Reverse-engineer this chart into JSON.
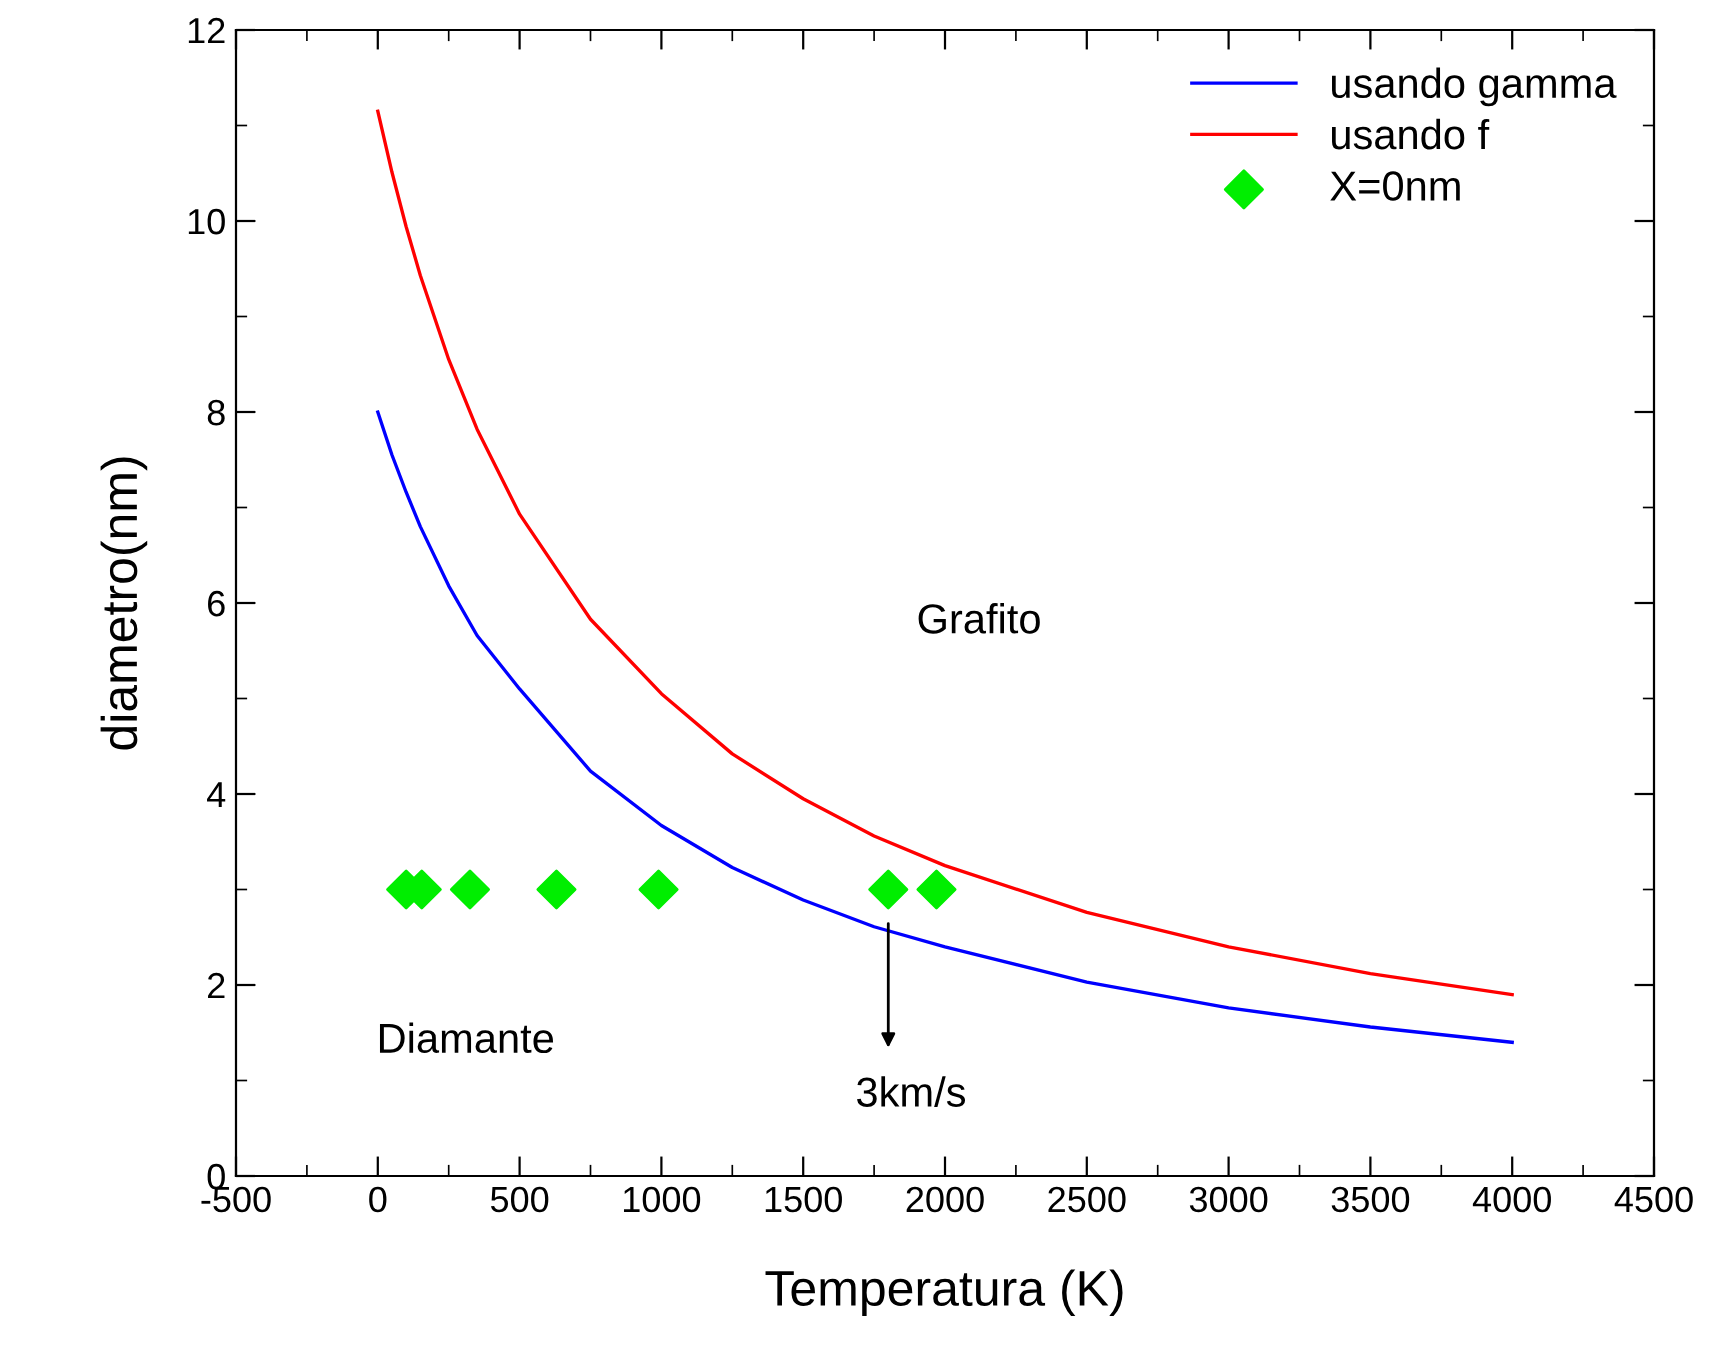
{
  "chart_data": {
    "type": "line",
    "xlabel": "Temperatura (K)",
    "ylabel": "diametro(nm)",
    "xlim": [
      -500,
      4500
    ],
    "xticks": [
      -500,
      0,
      500,
      1000,
      1500,
      2000,
      2500,
      3000,
      3500,
      4000,
      4500
    ],
    "ylim": [
      0,
      12
    ],
    "yticks": [
      0,
      2,
      4,
      6,
      8,
      10,
      12
    ],
    "grid": false,
    "legend": "top right",
    "series": [
      {
        "name": "usando gamma",
        "color": "#0000ff",
        "marker": "none",
        "x": [
          0,
          50,
          100,
          150,
          250,
          350,
          500,
          750,
          1000,
          1250,
          1500,
          1750,
          2000,
          2500,
          3000,
          3500,
          4000
        ],
        "values": [
          8.0,
          7.55,
          7.16,
          6.8,
          6.18,
          5.66,
          5.1,
          4.24,
          3.67,
          3.23,
          2.89,
          2.61,
          2.4,
          2.03,
          1.76,
          1.56,
          1.4
        ]
      },
      {
        "name": "usando f",
        "color": "#ff0000",
        "marker": "none",
        "x": [
          0,
          50,
          100,
          150,
          250,
          350,
          500,
          750,
          1000,
          1250,
          1500,
          1750,
          2000,
          2500,
          3000,
          3500,
          4000
        ],
        "values": [
          11.15,
          10.51,
          9.94,
          9.43,
          8.55,
          7.82,
          6.93,
          5.83,
          5.05,
          4.42,
          3.95,
          3.56,
          3.25,
          2.76,
          2.4,
          2.12,
          1.9
        ]
      },
      {
        "name": "X=0nm",
        "type": "scatter",
        "color": "#00ee00",
        "marker": "diamond",
        "x": [
          100,
          155,
          325,
          630,
          990,
          1800,
          1970
        ],
        "values": [
          3,
          3,
          3,
          3,
          3,
          3,
          3
        ]
      }
    ],
    "annotations": [
      "Grafito",
      "Diamante",
      "3km/s"
    ]
  }
}
